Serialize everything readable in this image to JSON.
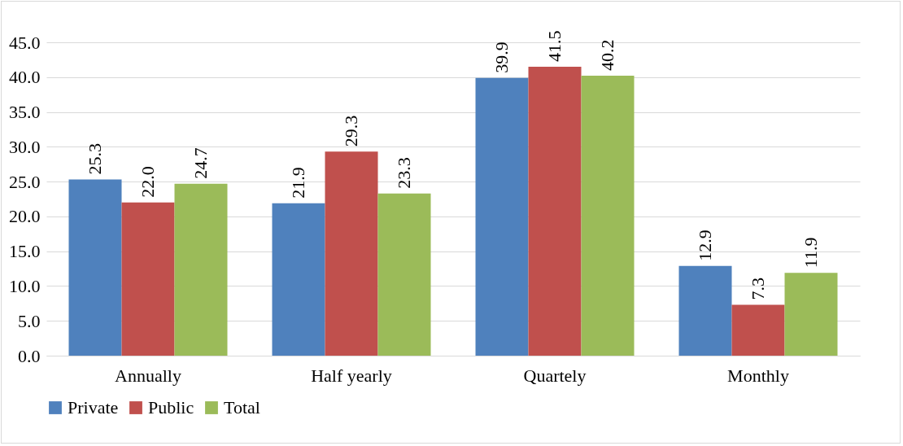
{
  "chart_data": {
    "type": "bar",
    "categories": [
      "Annually",
      "Half yearly",
      "Quartely",
      "Monthly"
    ],
    "series": [
      {
        "name": "Private",
        "color": "#4f81bd",
        "values": [
          25.3,
          21.9,
          39.9,
          12.9
        ],
        "value_labels": [
          "25.3",
          "21.9",
          "39.9",
          "12.9"
        ]
      },
      {
        "name": "Public",
        "color": "#c0504d",
        "values": [
          22.0,
          29.3,
          41.5,
          7.3
        ],
        "value_labels": [
          "22.0",
          "29.3",
          "41.5",
          "7.3"
        ]
      },
      {
        "name": "Total",
        "color": "#9bbb59",
        "values": [
          24.7,
          23.3,
          40.2,
          11.9
        ],
        "value_labels": [
          "24.7",
          "23.3",
          "40.2",
          "11.9"
        ]
      }
    ],
    "ylim": [
      0,
      45
    ],
    "yticks": [
      {
        "value": 0,
        "label": "0.0"
      },
      {
        "value": 5,
        "label": "5.0"
      },
      {
        "value": 10,
        "label": "10.0"
      },
      {
        "value": 15,
        "label": "15.0"
      },
      {
        "value": 20,
        "label": "20.0"
      },
      {
        "value": 25,
        "label": "25.0"
      },
      {
        "value": 30,
        "label": "30.0"
      },
      {
        "value": 35,
        "label": "35.0"
      },
      {
        "value": 40,
        "label": "40.0"
      },
      {
        "value": 45,
        "label": "45.0"
      }
    ],
    "grid": "y",
    "legend": "bottom"
  }
}
